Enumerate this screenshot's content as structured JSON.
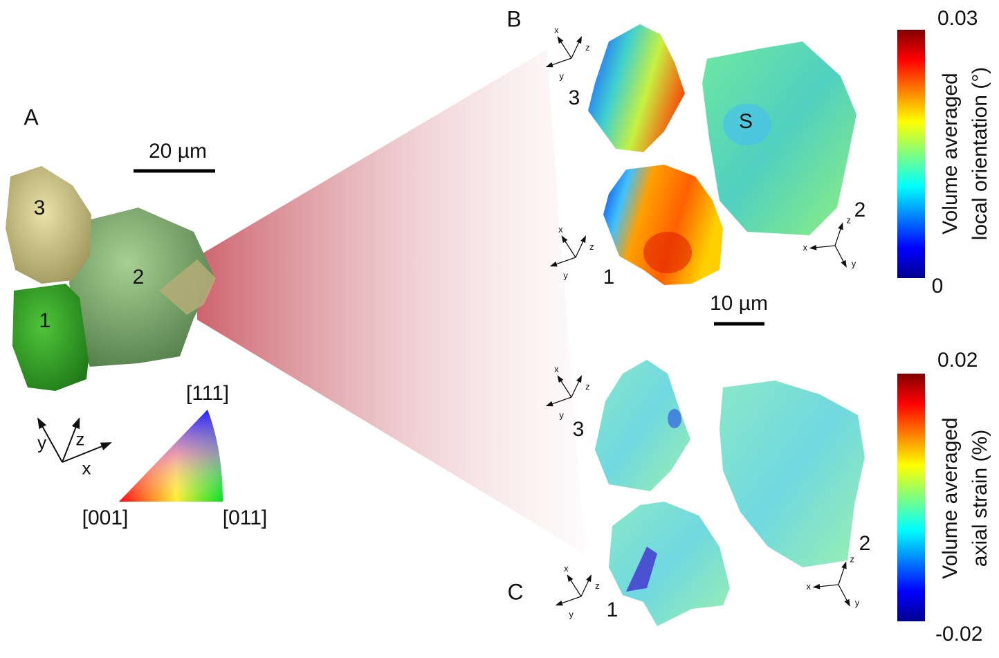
{
  "panelA": {
    "label": "A",
    "scale_bar": "20 µm",
    "grains": {
      "g1": "1",
      "g2": "2",
      "g3": "3"
    },
    "triad": {
      "x": "x",
      "y": "y",
      "z": "z"
    },
    "ipf": {
      "top": "[111]",
      "left": "[001]",
      "right": "[011]"
    }
  },
  "panelB": {
    "label": "B",
    "scale_bar": "10 µm",
    "marker": "S",
    "grains": {
      "g1": "1",
      "g2": "2",
      "g3": "3"
    },
    "triads": [
      {
        "x": "x",
        "y": "y",
        "z": "z"
      },
      {
        "x": "x",
        "y": "y",
        "z": "z"
      },
      {
        "x": "x",
        "y": "y",
        "z": "z"
      }
    ],
    "colorbar": {
      "max": 0.03,
      "min": 0,
      "label": [
        "Volume averaged",
        "local orientation (°)"
      ]
    }
  },
  "panelC": {
    "label": "C",
    "grains": {
      "g1": "1",
      "g2": "2",
      "g3": "3"
    },
    "triads": [
      {
        "x": "x",
        "y": "y",
        "z": "z"
      },
      {
        "x": "x",
        "y": "y",
        "z": "z"
      },
      {
        "x": "x",
        "y": "y",
        "z": "z"
      }
    ],
    "colorbar": {
      "max": 0.02,
      "min": -0.02,
      "label": [
        "Volume averaged",
        "axial strain (%)"
      ]
    }
  }
}
